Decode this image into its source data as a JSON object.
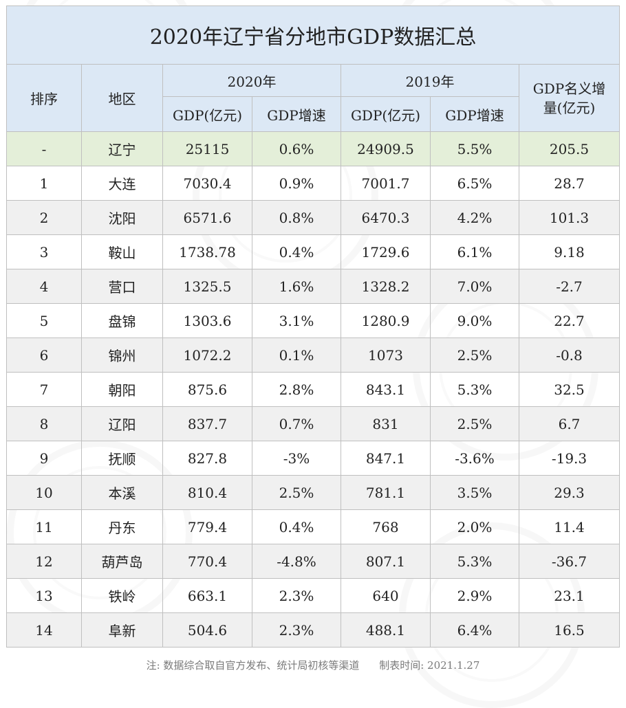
{
  "title": "2020年辽宁省分地市GDP数据汇总",
  "header": {
    "rank": "排序",
    "region": "地区",
    "year2020": "2020年",
    "year2019": "2019年",
    "gdp": "GDP(亿元)",
    "growth": "GDP增速",
    "increment": "GDP名义增量(亿元)"
  },
  "total": {
    "rank": "-",
    "region": "辽宁",
    "gdp2020": "25115",
    "growth2020": "0.6%",
    "gdp2019": "24909.5",
    "growth2019": "5.5%",
    "increment": "205.5"
  },
  "rows": [
    {
      "rank": "1",
      "region": "大连",
      "gdp2020": "7030.4",
      "growth2020": "0.9%",
      "gdp2019": "7001.7",
      "growth2019": "6.5%",
      "increment": "28.7"
    },
    {
      "rank": "2",
      "region": "沈阳",
      "gdp2020": "6571.6",
      "growth2020": "0.8%",
      "gdp2019": "6470.3",
      "growth2019": "4.2%",
      "increment": "101.3"
    },
    {
      "rank": "3",
      "region": "鞍山",
      "gdp2020": "1738.78",
      "growth2020": "0.4%",
      "gdp2019": "1729.6",
      "growth2019": "6.1%",
      "increment": "9.18"
    },
    {
      "rank": "4",
      "region": "营口",
      "gdp2020": "1325.5",
      "growth2020": "1.6%",
      "gdp2019": "1328.2",
      "growth2019": "7.0%",
      "increment": "-2.7"
    },
    {
      "rank": "5",
      "region": "盘锦",
      "gdp2020": "1303.6",
      "growth2020": "3.1%",
      "gdp2019": "1280.9",
      "growth2019": "9.0%",
      "increment": "22.7"
    },
    {
      "rank": "6",
      "region": "锦州",
      "gdp2020": "1072.2",
      "growth2020": "0.1%",
      "gdp2019": "1073",
      "growth2019": "2.5%",
      "increment": "-0.8"
    },
    {
      "rank": "7",
      "region": "朝阳",
      "gdp2020": "875.6",
      "growth2020": "2.8%",
      "gdp2019": "843.1",
      "growth2019": "5.3%",
      "increment": "32.5"
    },
    {
      "rank": "8",
      "region": "辽阳",
      "gdp2020": "837.7",
      "growth2020": "0.7%",
      "gdp2019": "831",
      "growth2019": "2.5%",
      "increment": "6.7"
    },
    {
      "rank": "9",
      "region": "抚顺",
      "gdp2020": "827.8",
      "growth2020": "-3%",
      "gdp2019": "847.1",
      "growth2019": "-3.6%",
      "increment": "-19.3"
    },
    {
      "rank": "10",
      "region": "本溪",
      "gdp2020": "810.4",
      "growth2020": "2.5%",
      "gdp2019": "781.1",
      "growth2019": "3.5%",
      "increment": "29.3"
    },
    {
      "rank": "11",
      "region": "丹东",
      "gdp2020": "779.4",
      "growth2020": "0.4%",
      "gdp2019": "768",
      "growth2019": "2.0%",
      "increment": "11.4"
    },
    {
      "rank": "12",
      "region": "葫芦岛",
      "gdp2020": "770.4",
      "growth2020": "-4.8%",
      "gdp2019": "807.1",
      "growth2019": "5.3%",
      "increment": "-36.7"
    },
    {
      "rank": "13",
      "region": "铁岭",
      "gdp2020": "663.1",
      "growth2020": "2.3%",
      "gdp2019": "640",
      "growth2019": "2.9%",
      "increment": "23.1"
    },
    {
      "rank": "14",
      "region": "阜新",
      "gdp2020": "504.6",
      "growth2020": "2.3%",
      "gdp2019": "488.1",
      "growth2019": "6.4%",
      "increment": "16.5"
    }
  ],
  "note": {
    "source": "注: 数据综合取自官方发布、统计局初核等渠道",
    "date": "制表时间: 2021.1.27"
  }
}
